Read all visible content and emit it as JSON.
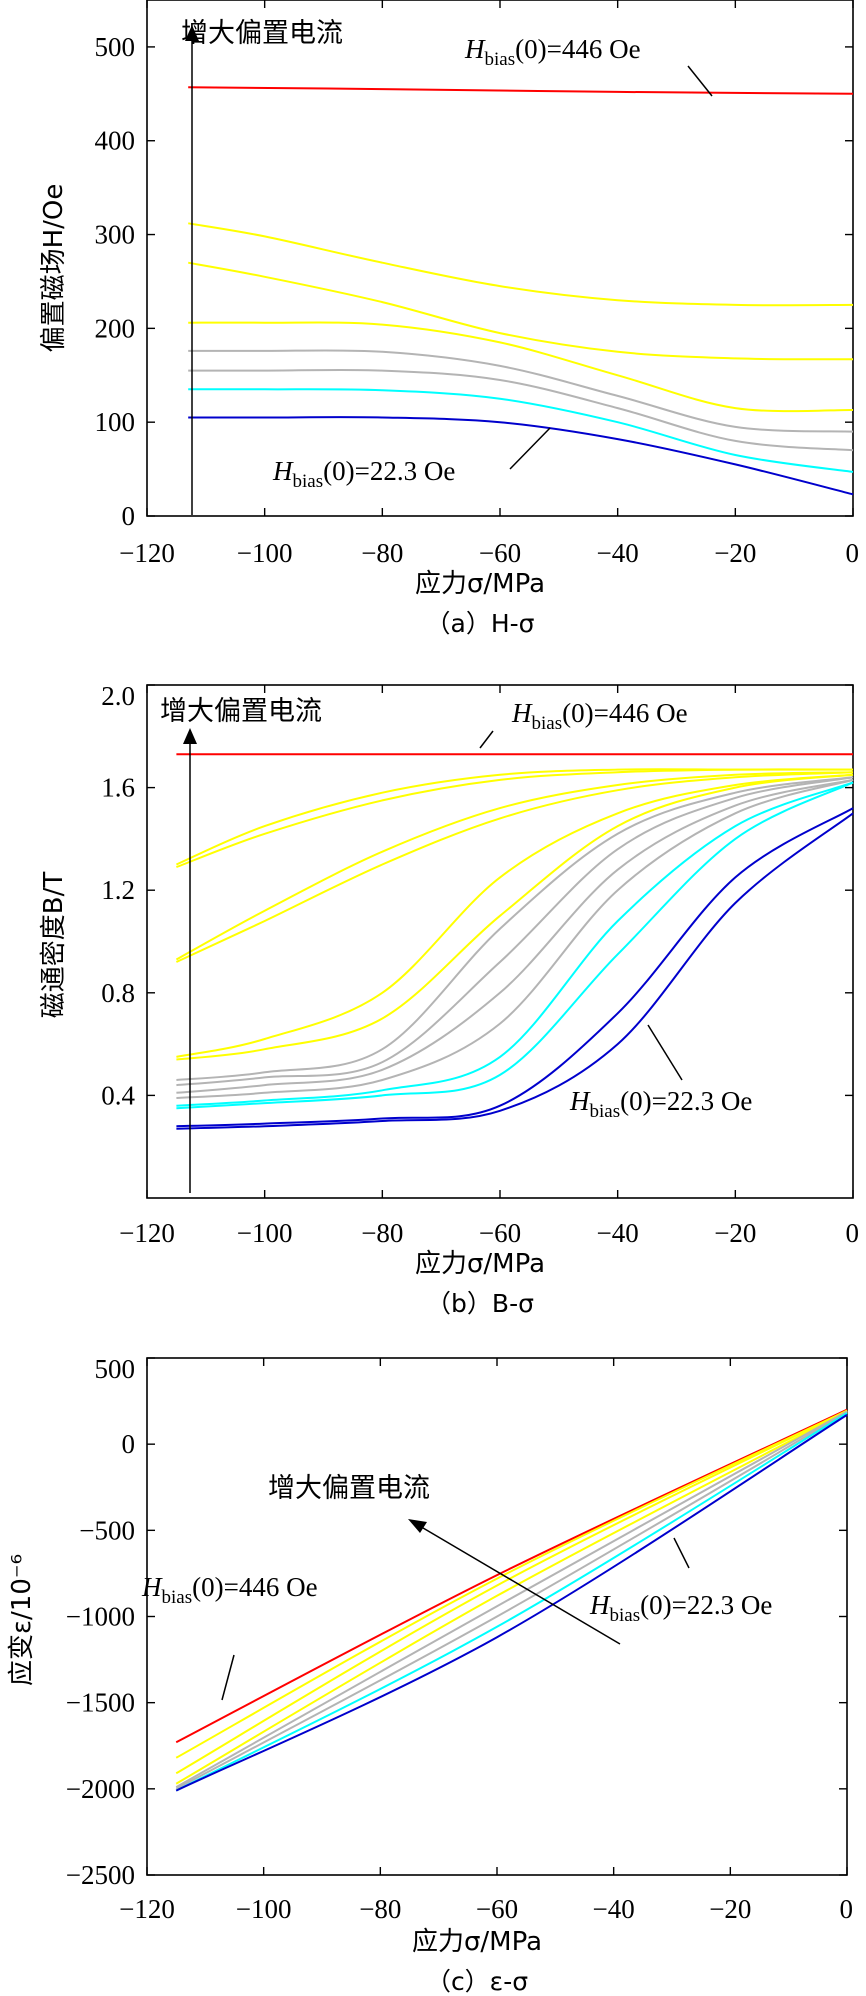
{
  "chart_data": [
    {
      "type": "line",
      "caption": "（a）H-σ",
      "xlabel": "应力σ/MPa",
      "ylabel": "偏置磁场H/Oe",
      "xlim": [
        -120,
        0
      ],
      "ylim": [
        0,
        550
      ],
      "xticks": [
        "−120",
        "−100",
        "−80",
        "−60",
        "−40",
        "−20",
        "0"
      ],
      "yticks": [
        "0",
        "100",
        "200",
        "300",
        "400",
        "500"
      ],
      "arrow_label": "增大偏置电流",
      "label_high": "Hbias(0)=446 Oe",
      "label_low": "Hbias(0)=22.3 Oe",
      "series": [
        {
          "color": "#ff0000",
          "x": [
            -113,
            -80,
            -40,
            0
          ],
          "y": [
            457,
            455,
            452,
            450
          ]
        },
        {
          "color": "#ffff00",
          "x": [
            -113,
            -100,
            -80,
            -60,
            -40,
            -20,
            0
          ],
          "y": [
            312,
            298,
            270,
            245,
            230,
            225,
            225
          ]
        },
        {
          "color": "#ffff00",
          "x": [
            -113,
            -100,
            -80,
            -60,
            -40,
            -20,
            0
          ],
          "y": [
            270,
            255,
            228,
            195,
            175,
            168,
            167
          ]
        },
        {
          "color": "#ffff00",
          "x": [
            -113,
            -100,
            -80,
            -60,
            -40,
            -20,
            0
          ],
          "y": [
            206,
            206,
            204,
            185,
            150,
            115,
            113
          ]
        },
        {
          "color": "#b4b4b4",
          "x": [
            -113,
            -100,
            -80,
            -60,
            -40,
            -20,
            0
          ],
          "y": [
            176,
            176,
            175,
            160,
            128,
            95,
            90
          ]
        },
        {
          "color": "#b4b4b4",
          "x": [
            -113,
            -100,
            -80,
            -60,
            -40,
            -20,
            0
          ],
          "y": [
            155,
            155,
            155,
            145,
            115,
            80,
            70
          ]
        },
        {
          "color": "#00ffff",
          "x": [
            -113,
            -100,
            -80,
            -60,
            -40,
            -20,
            0
          ],
          "y": [
            135,
            135,
            134,
            125,
            100,
            65,
            47
          ]
        },
        {
          "color": "#0000cc",
          "x": [
            -113,
            -100,
            -80,
            -60,
            -40,
            -20,
            0
          ],
          "y": [
            105,
            105,
            105,
            100,
            82,
            55,
            23
          ]
        }
      ]
    },
    {
      "type": "line",
      "caption": "（b）B-σ",
      "xlabel": "应力σ/MPa",
      "ylabel": "磁通密度B/T",
      "xlim": [
        -120,
        0
      ],
      "ylim": [
        0,
        2.0
      ],
      "xticks": [
        "−120",
        "−100",
        "−80",
        "−60",
        "−40",
        "−20",
        "0"
      ],
      "yticks": [
        "0.4",
        "0.8",
        "1.2",
        "1.6",
        "2.0"
      ],
      "arrow_label": "增大偏置电流",
      "label_high": "Hbias(0)=446 Oe",
      "label_low": "Hbias(0)=22.3 Oe",
      "series": [
        {
          "color": "#ff0000",
          "x": [
            -115,
            -80,
            -40,
            0
          ],
          "y": [
            1.73,
            1.73,
            1.73,
            1.73
          ]
        },
        {
          "color": "#ffff00",
          "x": [
            -115,
            -100,
            -80,
            -60,
            -40,
            -20,
            0
          ],
          "y": [
            1.3,
            1.45,
            1.58,
            1.65,
            1.67,
            1.67,
            1.67
          ]
        },
        {
          "color": "#ffff00",
          "x": [
            -115,
            -100,
            -80,
            -60,
            -40,
            -20,
            0
          ],
          "y": [
            1.29,
            1.42,
            1.55,
            1.63,
            1.66,
            1.67,
            1.67
          ]
        },
        {
          "color": "#ffff00",
          "x": [
            -115,
            -100,
            -80,
            -60,
            -40,
            -20,
            0
          ],
          "y": [
            0.93,
            1.12,
            1.35,
            1.52,
            1.61,
            1.65,
            1.66
          ]
        },
        {
          "color": "#ffff00",
          "x": [
            -115,
            -100,
            -80,
            -60,
            -40,
            -20,
            0
          ],
          "y": [
            0.92,
            1.08,
            1.3,
            1.48,
            1.59,
            1.64,
            1.66
          ]
        },
        {
          "color": "#ffff00",
          "x": [
            -115,
            -100,
            -80,
            -60,
            -40,
            -20,
            0
          ],
          "y": [
            0.55,
            0.62,
            0.8,
            1.25,
            1.5,
            1.61,
            1.65
          ]
        },
        {
          "color": "#ffff00",
          "x": [
            -115,
            -100,
            -80,
            -60,
            -40,
            -20,
            0
          ],
          "y": [
            0.54,
            0.58,
            0.7,
            1.1,
            1.45,
            1.6,
            1.65
          ]
        },
        {
          "color": "#b4b4b4",
          "x": [
            -115,
            -100,
            -80,
            -60,
            -40,
            -20,
            0
          ],
          "y": [
            0.46,
            0.49,
            0.58,
            1.05,
            1.42,
            1.58,
            1.64
          ]
        },
        {
          "color": "#b4b4b4",
          "x": [
            -115,
            -100,
            -80,
            -60,
            -40,
            -20,
            0
          ],
          "y": [
            0.44,
            0.47,
            0.53,
            0.92,
            1.36,
            1.56,
            1.64
          ]
        },
        {
          "color": "#b4b4b4",
          "x": [
            -115,
            -100,
            -80,
            -60,
            -40,
            -20,
            0
          ],
          "y": [
            0.41,
            0.44,
            0.5,
            0.8,
            1.28,
            1.53,
            1.63
          ]
        },
        {
          "color": "#b4b4b4",
          "x": [
            -115,
            -100,
            -80,
            -60,
            -40,
            -20,
            0
          ],
          "y": [
            0.39,
            0.41,
            0.46,
            0.68,
            1.2,
            1.5,
            1.63
          ]
        },
        {
          "color": "#00ffff",
          "x": [
            -115,
            -100,
            -80,
            -60,
            -40,
            -20,
            0
          ],
          "y": [
            0.36,
            0.38,
            0.42,
            0.55,
            1.08,
            1.45,
            1.62
          ]
        },
        {
          "color": "#00ffff",
          "x": [
            -115,
            -100,
            -80,
            -60,
            -40,
            -20,
            0
          ],
          "y": [
            0.35,
            0.37,
            0.4,
            0.48,
            0.95,
            1.4,
            1.62
          ]
        },
        {
          "color": "#0000cc",
          "x": [
            -115,
            -100,
            -80,
            -60,
            -40,
            -20,
            0
          ],
          "y": [
            0.28,
            0.29,
            0.31,
            0.36,
            0.72,
            1.25,
            1.52
          ]
        },
        {
          "color": "#0000cc",
          "x": [
            -115,
            -100,
            -80,
            -60,
            -40,
            -20,
            0
          ],
          "y": [
            0.27,
            0.28,
            0.3,
            0.34,
            0.6,
            1.15,
            1.5
          ]
        }
      ]
    },
    {
      "type": "line",
      "caption": "（c）ε-σ",
      "xlabel": "应力σ/MPa",
      "ylabel": "应变ε/10⁻⁶",
      "xlim": [
        -120,
        0
      ],
      "ylim": [
        -2500,
        500
      ],
      "xticks": [
        "−120",
        "−100",
        "−80",
        "−60",
        "−40",
        "−20",
        "0"
      ],
      "yticks": [
        "500",
        "0",
        "−500",
        "−1000",
        "−1500",
        "−2000",
        "−2500"
      ],
      "arrow_label": "增大偏置电流",
      "label_high": "Hbias(0)=446 Oe",
      "label_low": "Hbias(0)=22.3 Oe",
      "series": [
        {
          "color": "#ff0000",
          "x": [
            -115,
            -60,
            0
          ],
          "y": [
            -1730,
            -760,
            200
          ]
        },
        {
          "color": "#ffff00",
          "x": [
            -115,
            -60,
            0
          ],
          "y": [
            -1820,
            -780,
            195
          ]
        },
        {
          "color": "#ffff00",
          "x": [
            -115,
            -60,
            0
          ],
          "y": [
            -1910,
            -820,
            195
          ]
        },
        {
          "color": "#ffff00",
          "x": [
            -115,
            -60,
            0
          ],
          "y": [
            -1970,
            -880,
            190
          ]
        },
        {
          "color": "#b4b4b4",
          "x": [
            -115,
            -60,
            0
          ],
          "y": [
            -1990,
            -940,
            190
          ]
        },
        {
          "color": "#b4b4b4",
          "x": [
            -115,
            -60,
            0
          ],
          "y": [
            -2000,
            -1000,
            185
          ]
        },
        {
          "color": "#00ffff",
          "x": [
            -115,
            -60,
            0
          ],
          "y": [
            -2010,
            -1060,
            180
          ]
        },
        {
          "color": "#0000cc",
          "x": [
            -115,
            -60,
            0
          ],
          "y": [
            -2010,
            -1120,
            170
          ]
        }
      ]
    }
  ]
}
